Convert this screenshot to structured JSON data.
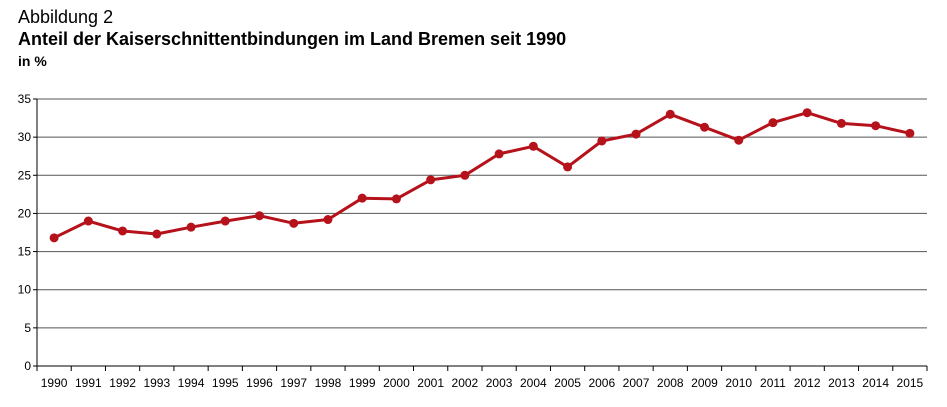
{
  "header": {
    "figure_label": "Abbildung 2",
    "title": "Anteil der Kaiserschnittentbindungen im Land Bremen seit 1990",
    "unit": "in %"
  },
  "colors": {
    "series": "#B5121B",
    "grid": "#555555"
  },
  "chart_data": {
    "type": "line",
    "title": "Anteil der Kaiserschnittentbindungen im Land Bremen seit 1990",
    "xlabel": "",
    "ylabel": "in %",
    "ylim": [
      0,
      35
    ],
    "yticks": [
      0,
      5,
      10,
      15,
      20,
      25,
      30,
      35
    ],
    "grid": true,
    "legend": "none",
    "categories": [
      "1990",
      "1991",
      "1992",
      "1993",
      "1994",
      "1995",
      "1996",
      "1997",
      "1998",
      "1999",
      "2000",
      "2001",
      "2002",
      "2003",
      "2004",
      "2005",
      "2006",
      "2007",
      "2008",
      "2009",
      "2010",
      "2011",
      "2012",
      "2013",
      "2014",
      "2015"
    ],
    "series": [
      {
        "values": [
          16.8,
          19.0,
          17.7,
          17.3,
          18.2,
          19.0,
          19.7,
          18.7,
          19.2,
          22.0,
          21.9,
          24.4,
          25.0,
          27.8,
          28.8,
          26.1,
          29.5,
          30.4,
          33.0,
          31.3,
          29.6,
          31.9,
          33.2,
          31.8,
          31.5,
          30.5
        ]
      }
    ]
  }
}
